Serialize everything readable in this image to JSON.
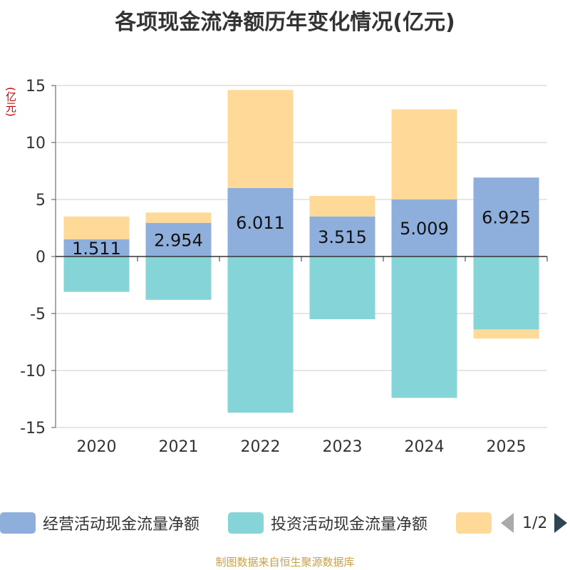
{
  "chart_data": {
    "type": "bar",
    "stacked": true,
    "title": "各项现金流净额历年变化情况(亿元)",
    "ylabel": "(亿元)",
    "ylim": [
      -15,
      15
    ],
    "yticks": [
      15,
      10,
      5,
      0,
      -5,
      -10,
      -15
    ],
    "categories": [
      "2020",
      "2021",
      "2022",
      "2023",
      "2024",
      "2025"
    ],
    "series": [
      {
        "name": "经营活动现金流量净额",
        "color": "#8eaedc",
        "values": [
          1.511,
          2.954,
          6.011,
          3.515,
          5.009,
          6.925
        ],
        "labels": [
          "1.511",
          "2.954",
          "6.011",
          "3.515",
          "5.009",
          "6.925"
        ]
      },
      {
        "name": "投资活动现金流量净额",
        "color": "#85d4d8",
        "values": [
          -3.1,
          -3.8,
          -13.7,
          -5.5,
          -12.4,
          -6.4
        ]
      },
      {
        "name": "",
        "color": "#ffd998",
        "values": [
          2.0,
          0.9,
          8.6,
          1.8,
          7.9,
          -0.8
        ]
      }
    ],
    "legend_position": "bottom"
  },
  "legend": {
    "items": [
      "经营活动现金流量净额",
      "投资活动现金流量净额",
      ""
    ],
    "page": "1/2"
  },
  "source": "制图数据来自恒生聚源数据库"
}
